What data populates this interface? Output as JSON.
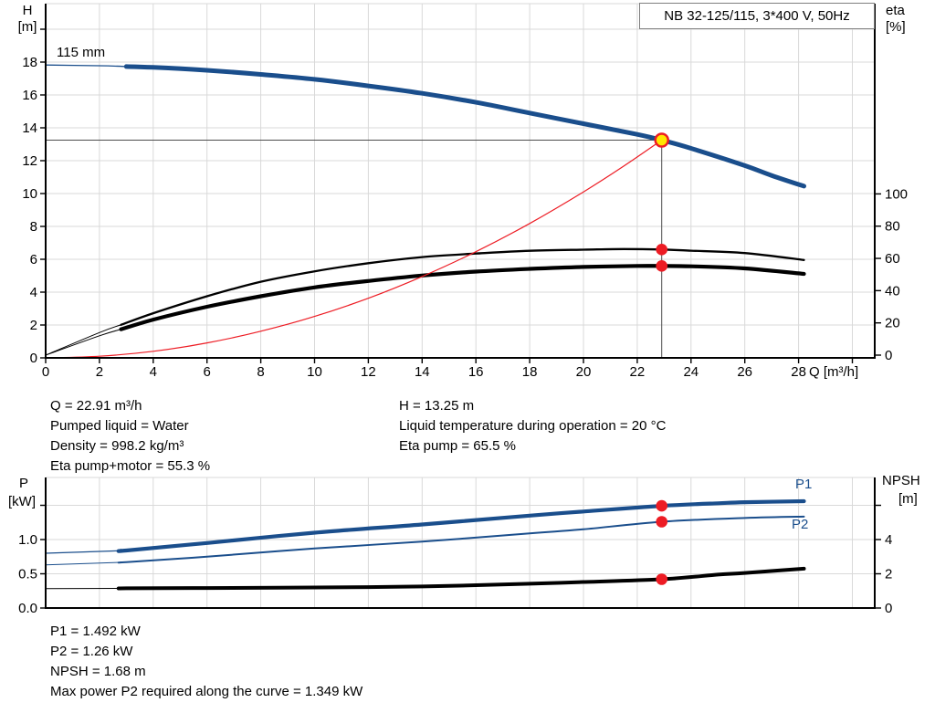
{
  "header": {
    "title": "NB 32-125/115, 3*400 V, 50Hz"
  },
  "axis_labels": {
    "h_top": "H",
    "h_unit": "[m]",
    "eta_top": "eta",
    "eta_unit": "[%]",
    "q_label": "Q [m³/h]",
    "p_top": "P",
    "p_unit": "[kW]",
    "npsh_top": "NPSH",
    "npsh_unit": "[m]"
  },
  "impeller_label": "115 mm",
  "curve_labels": {
    "p1": "P1",
    "p2": "P2"
  },
  "results_top_left": {
    "lines": [
      "Q = 22.91 m³/h",
      "Pumped liquid = Water",
      "Density = 998.2 kg/m³",
      "Eta pump+motor = 55.3 %"
    ]
  },
  "results_top_right": {
    "lines": [
      "H = 13.25 m",
      "Liquid temperature during operation = 20 °C",
      "Eta pump = 65.5 %"
    ]
  },
  "results_bottom": {
    "lines": [
      "P1 = 1.492 kW",
      "P2 = 1.26 kW",
      "NPSH = 1.68 m",
      "Max power P2 required along the curve = 1.349 kW"
    ]
  },
  "colors": {
    "blue": "#1A4E8C",
    "black": "#000000",
    "red": "#ED1C24",
    "yellow": "#FFE600",
    "grid": "#D9D9D9",
    "crosshair": "#4D4D4D",
    "axis": "#000000"
  },
  "chart_data": [
    {
      "type": "line",
      "title": "NB 32-125/115, 3*400 V, 50Hz",
      "xlabel": "Q [m³/h]",
      "x_axis": {
        "min": 0,
        "max": 30.8,
        "ticks": [
          {
            "v": 0,
            "label": "0"
          },
          {
            "v": 2,
            "label": "2"
          },
          {
            "v": 4,
            "label": "4"
          },
          {
            "v": 6,
            "label": "6"
          },
          {
            "v": 8,
            "label": "8"
          },
          {
            "v": 10,
            "label": "10"
          },
          {
            "v": 12,
            "label": "12"
          },
          {
            "v": 14,
            "label": "14"
          },
          {
            "v": 16,
            "label": "16"
          },
          {
            "v": 18,
            "label": "18"
          },
          {
            "v": 20,
            "label": "20"
          },
          {
            "v": 22,
            "label": "22"
          },
          {
            "v": 24,
            "label": "24"
          },
          {
            "v": 26,
            "label": "26"
          },
          {
            "v": 28,
            "label": "28"
          },
          {
            "v": 30,
            "label": ""
          }
        ]
      },
      "y_left": {
        "name": "H",
        "unit": "m",
        "range": [
          0,
          21.5
        ],
        "ticks": [
          {
            "v": 0,
            "label": "0"
          },
          {
            "v": 2,
            "label": "2"
          },
          {
            "v": 4,
            "label": "4"
          },
          {
            "v": 6,
            "label": "6"
          },
          {
            "v": 8,
            "label": "8"
          },
          {
            "v": 10,
            "label": "10"
          },
          {
            "v": 12,
            "label": "12"
          },
          {
            "v": 14,
            "label": "14"
          },
          {
            "v": 16,
            "label": "16"
          },
          {
            "v": 18,
            "label": "18"
          },
          {
            "v": 20,
            "label": ""
          }
        ]
      },
      "y_right": {
        "name": "eta",
        "unit": "%",
        "range": [
          0,
          100
        ],
        "ticks": [
          {
            "v": 0,
            "label": "0"
          },
          {
            "v": 20,
            "label": "20"
          },
          {
            "v": 40,
            "label": "40"
          },
          {
            "v": 60,
            "label": "60"
          },
          {
            "v": 80,
            "label": "80"
          },
          {
            "v": 100,
            "label": "100"
          }
        ]
      },
      "series": [
        {
          "name": "head-curve-115mm",
          "axis": "H",
          "color": "blue",
          "width": 5,
          "thin_width": 1.3,
          "thin_until": 3,
          "points": [
            [
              0,
              17.82
            ],
            [
              2,
              17.78
            ],
            [
              4,
              17.68
            ],
            [
              6,
              17.5
            ],
            [
              8,
              17.25
            ],
            [
              10,
              16.95
            ],
            [
              12,
              16.55
            ],
            [
              14,
              16.1
            ],
            [
              16,
              15.55
            ],
            [
              18,
              14.9
            ],
            [
              20,
              14.25
            ],
            [
              22,
              13.6
            ],
            [
              22.91,
              13.25
            ],
            [
              24,
              12.75
            ],
            [
              26,
              11.7
            ],
            [
              27,
              11.1
            ],
            [
              28.2,
              10.45
            ]
          ]
        },
        {
          "name": "eta-pump",
          "axis": "eta",
          "color": "black",
          "width": 2.3,
          "thin_width": 1,
          "thin_until": 2.8,
          "points": [
            [
              0,
              0
            ],
            [
              2,
              14
            ],
            [
              4,
              26
            ],
            [
              6,
              36.5
            ],
            [
              8,
              45.5
            ],
            [
              10,
              52
            ],
            [
              12,
              57
            ],
            [
              14,
              60.8
            ],
            [
              16,
              63
            ],
            [
              18,
              64.7
            ],
            [
              20,
              65.4
            ],
            [
              21.5,
              65.8
            ],
            [
              22.91,
              65.5
            ],
            [
              24,
              64.8
            ],
            [
              26,
              63.3
            ],
            [
              28.2,
              59
            ]
          ]
        },
        {
          "name": "eta-pump-motor",
          "axis": "eta",
          "color": "black",
          "width": 4.2,
          "thin_width": 1,
          "thin_until": 2.8,
          "points": [
            [
              0,
              0
            ],
            [
              2,
              12
            ],
            [
              4,
              22
            ],
            [
              6,
              30
            ],
            [
              8,
              36.5
            ],
            [
              10,
              42
            ],
            [
              12,
              46
            ],
            [
              14,
              49.4
            ],
            [
              16,
              51.8
            ],
            [
              18,
              53.5
            ],
            [
              20,
              54.7
            ],
            [
              22,
              55.3
            ],
            [
              22.91,
              55.3
            ],
            [
              24,
              55.1
            ],
            [
              26,
              53.8
            ],
            [
              28.2,
              50.4
            ]
          ]
        },
        {
          "name": "system-curve",
          "axis": "H",
          "color": "red",
          "width": 1.2,
          "points": [
            [
              0,
              0
            ],
            [
              2,
              0.1
            ],
            [
              4,
              0.4
            ],
            [
              6,
              0.91
            ],
            [
              8,
              1.62
            ],
            [
              10,
              2.52
            ],
            [
              12,
              3.63
            ],
            [
              14,
              4.95
            ],
            [
              16,
              6.46
            ],
            [
              18,
              8.18
            ],
            [
              20,
              10.1
            ],
            [
              21.5,
              11.67
            ],
            [
              22.91,
              13.25
            ]
          ]
        }
      ],
      "markers": [
        {
          "style": "operating",
          "axis": "H",
          "q": 22.91,
          "v": 13.25
        },
        {
          "style": "dot",
          "axis": "eta",
          "q": 22.91,
          "v": 65.5
        },
        {
          "style": "dot",
          "axis": "eta",
          "q": 22.91,
          "v": 55.3
        }
      ],
      "crosshair": {
        "axis": "H",
        "q": 22.91,
        "v": 13.25
      },
      "annotation": "115 mm"
    },
    {
      "type": "line",
      "x_axis": {
        "min": 0,
        "max": 30.8,
        "ticks": []
      },
      "y_left": {
        "name": "P",
        "unit": "kW",
        "range": [
          0,
          1.9
        ],
        "ticks": [
          {
            "v": 0,
            "label": "0.0"
          },
          {
            "v": 0.5,
            "label": "0.5"
          },
          {
            "v": 1,
            "label": "1.0"
          },
          {
            "v": 1.5,
            "label": ""
          }
        ]
      },
      "y_right": {
        "name": "NPSH",
        "unit": "m",
        "range": [
          0,
          7.6
        ],
        "ticks": [
          {
            "v": 0,
            "label": "0"
          },
          {
            "v": 2,
            "label": "2"
          },
          {
            "v": 4,
            "label": "4"
          },
          {
            "v": 6,
            "label": ""
          }
        ]
      },
      "series": [
        {
          "name": "p1-power",
          "axis": "P",
          "color": "blue",
          "width": 4.2,
          "thin_width": 1.2,
          "thin_until": 2.8,
          "points": [
            [
              0,
              0.8
            ],
            [
              3,
              0.84
            ],
            [
              6,
              0.95
            ],
            [
              10,
              1.1
            ],
            [
              14,
              1.22
            ],
            [
              18,
              1.35
            ],
            [
              20,
              1.41
            ],
            [
              22.91,
              1.492
            ],
            [
              25,
              1.53
            ],
            [
              26,
              1.545
            ],
            [
              28.2,
              1.56
            ]
          ]
        },
        {
          "name": "p2-power",
          "axis": "P",
          "color": "blue",
          "width": 2,
          "thin_width": 1,
          "thin_until": 2.8,
          "points": [
            [
              0,
              0.63
            ],
            [
              3,
              0.67
            ],
            [
              6,
              0.75
            ],
            [
              10,
              0.87
            ],
            [
              14,
              0.97
            ],
            [
              18,
              1.09
            ],
            [
              20,
              1.15
            ],
            [
              22.91,
              1.26
            ],
            [
              26,
              1.315
            ],
            [
              28.2,
              1.335
            ]
          ]
        },
        {
          "name": "npsh-curve",
          "axis": "NPSH",
          "color": "black",
          "width": 4,
          "thin_width": 1,
          "thin_until": 2.8,
          "points": [
            [
              0,
              1.13
            ],
            [
              3,
              1.15
            ],
            [
              6,
              1.17
            ],
            [
              10,
              1.2
            ],
            [
              14,
              1.26
            ],
            [
              18,
              1.42
            ],
            [
              20,
              1.52
            ],
            [
              22.91,
              1.68
            ],
            [
              25,
              1.95
            ],
            [
              26,
              2.05
            ],
            [
              28.2,
              2.3
            ]
          ]
        }
      ],
      "markers": [
        {
          "style": "dot",
          "axis": "P",
          "q": 22.91,
          "v": 1.492
        },
        {
          "style": "dot",
          "axis": "P",
          "q": 22.91,
          "v": 1.26
        },
        {
          "style": "dot",
          "axis": "NPSH",
          "q": 22.91,
          "v": 1.68
        }
      ]
    }
  ]
}
